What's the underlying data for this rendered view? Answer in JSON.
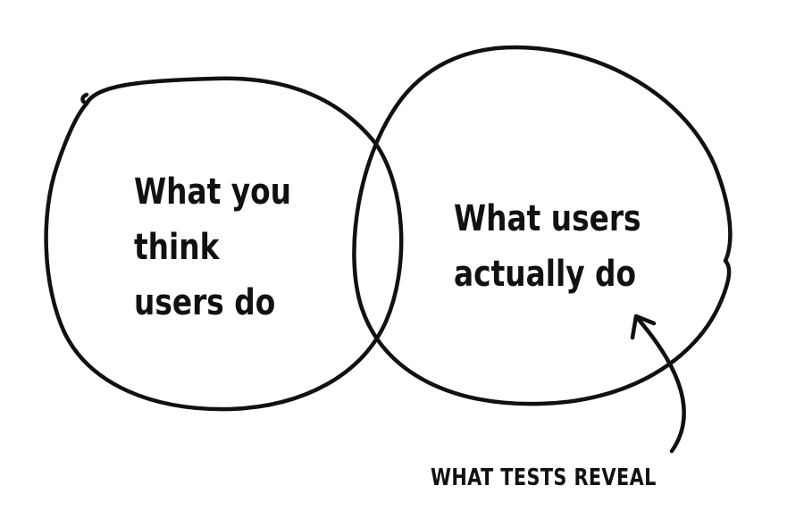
{
  "diagram": {
    "type": "venn",
    "left_circle": {
      "label": "What you\nthink\n users do"
    },
    "right_circle": {
      "label": "What users\nactually do"
    },
    "annotation": {
      "text": "WHAT TESTS REVEAL",
      "points_to": "right-circle"
    },
    "colors": {
      "ink": "#111111",
      "background": "#ffffff"
    }
  }
}
